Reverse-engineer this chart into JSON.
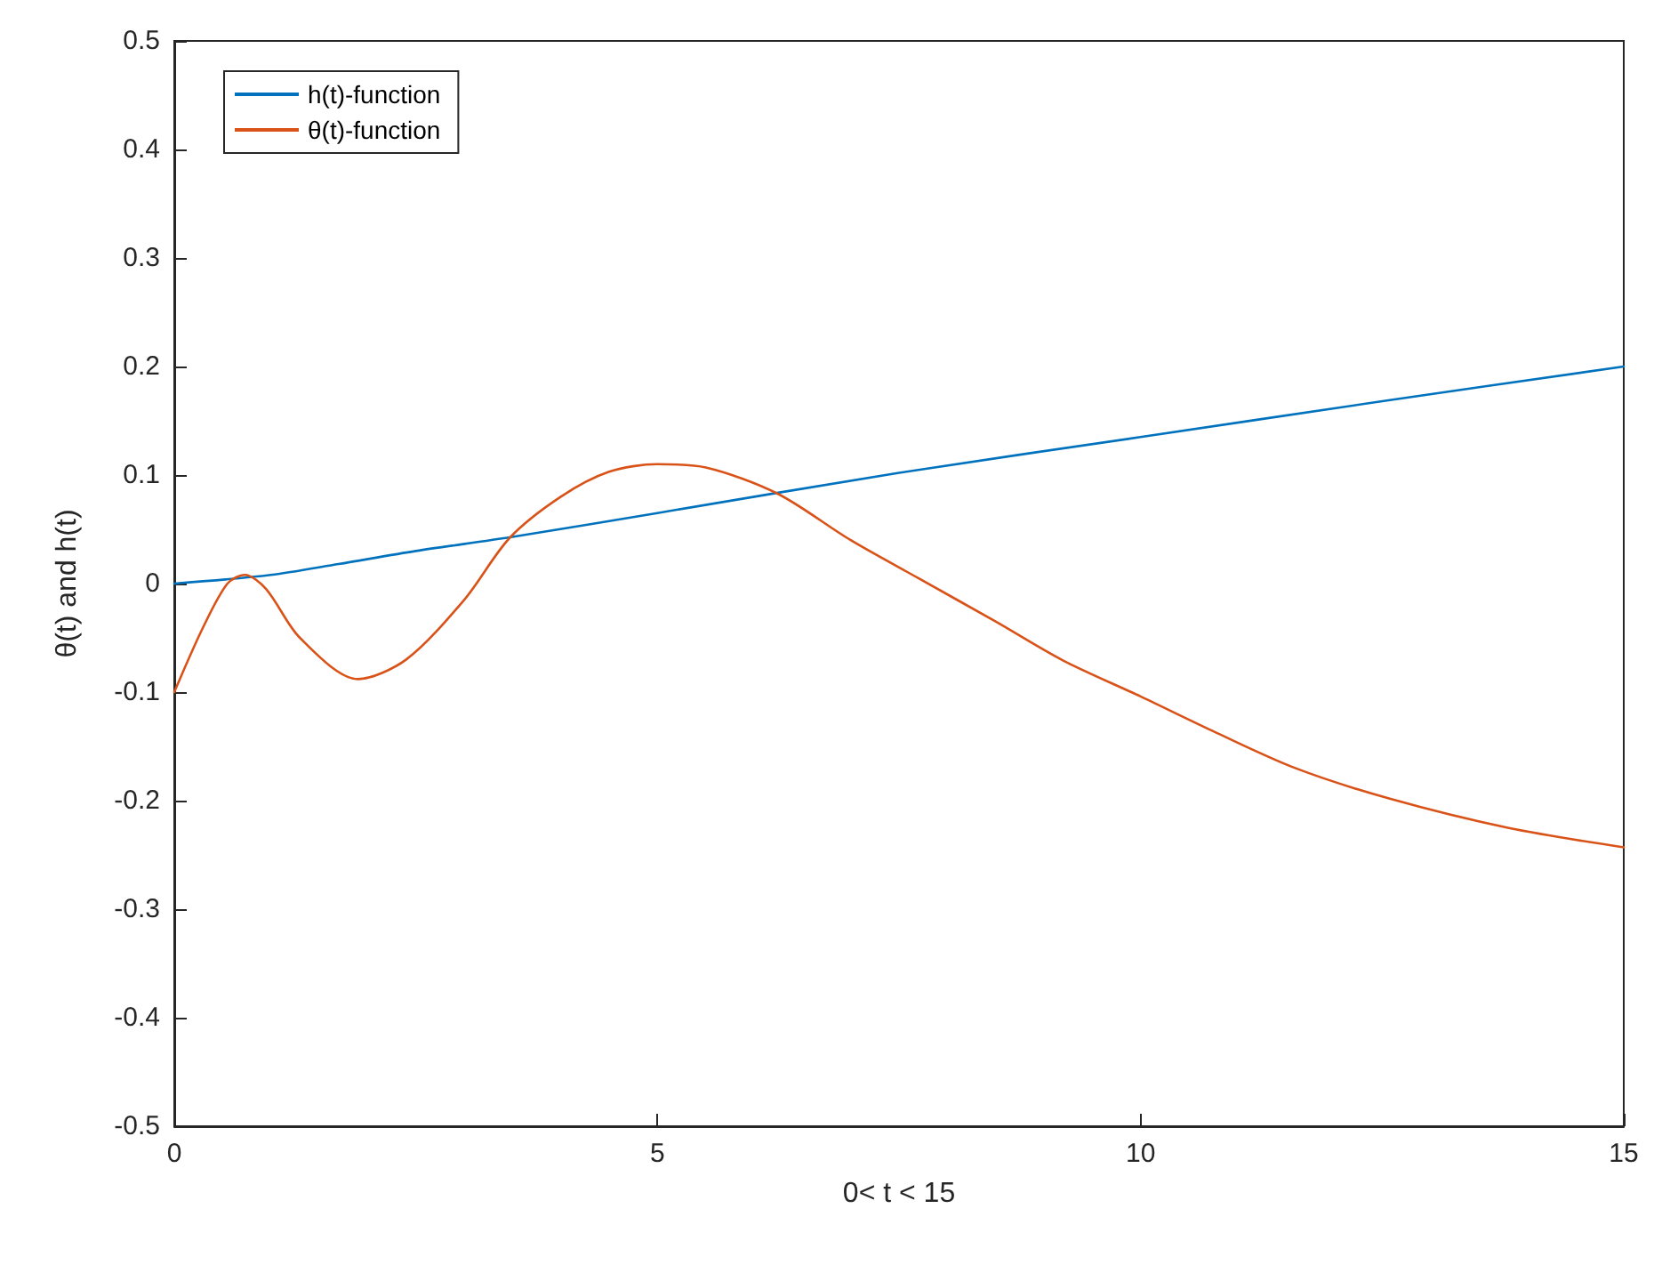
{
  "chart_data": {
    "type": "line",
    "xlabel": "0< t < 15",
    "ylabel": "θ(t) and h(t)",
    "xlim": [
      0,
      15
    ],
    "xticks": [
      0,
      5,
      10,
      15
    ],
    "ylim": [
      -0.5,
      0.5
    ],
    "yticks": [
      -0.5,
      -0.4,
      -0.3,
      -0.2,
      -0.1,
      0,
      0.1,
      0.2,
      0.3,
      0.4,
      0.5
    ],
    "grid": false,
    "legend": "top left",
    "marker": "none",
    "line_style": "solid",
    "series": [
      {
        "name": "h(t)-function",
        "color": "#0072bd",
        "x": [
          0,
          1,
          1.7,
          2.5,
          3.5,
          5,
          7.5,
          10,
          12.5,
          15
        ],
        "values": [
          0,
          0.008,
          0.018,
          0.03,
          0.043,
          0.065,
          0.102,
          0.135,
          0.168,
          0.2
        ]
      },
      {
        "name": "θ(t)-function",
        "color": "#d95319",
        "x": [
          0,
          0.3,
          0.55,
          0.73,
          0.95,
          1.3,
          1.9,
          2.4,
          3,
          3.47,
          4,
          4.5,
          5,
          5.5,
          6.24,
          7,
          7.7,
          8.5,
          9.2,
          10,
          10.75,
          11.6,
          12.57,
          13.8,
          15
        ],
        "values": [
          -0.1,
          -0.04,
          0,
          0.008,
          -0.005,
          -0.05,
          -0.088,
          -0.07,
          -0.015,
          0.042,
          0.08,
          0.103,
          0.11,
          0.107,
          0.083,
          0.04,
          0.005,
          -0.035,
          -0.071,
          -0.104,
          -0.136,
          -0.17,
          -0.198,
          -0.225,
          -0.243
        ]
      }
    ]
  }
}
